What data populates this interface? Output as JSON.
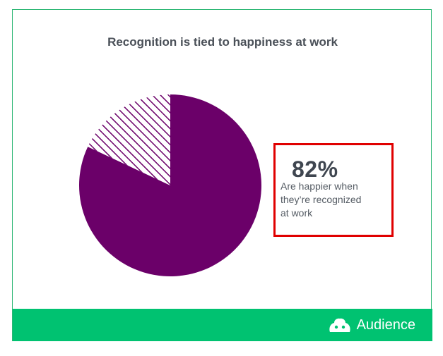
{
  "chart_data": {
    "type": "pie",
    "title": "Recognition is tied to happiness at work",
    "slices": [
      {
        "value": 82,
        "color": "#6b0069",
        "fill": "solid"
      },
      {
        "value": 18,
        "color": "#6b0069",
        "fill": "hatched"
      }
    ],
    "start_angle_deg": 0,
    "direction": "clockwise"
  },
  "callout": {
    "stat": "82%",
    "description": "Are happier when\nthey’re recognized\nat work"
  },
  "footer": {
    "logo_icon": "audience-logo-icon",
    "brand": "Audience",
    "background": "#00c271"
  },
  "colors": {
    "accent_purple": "#6b0069",
    "highlight_border": "#e00000"
  }
}
